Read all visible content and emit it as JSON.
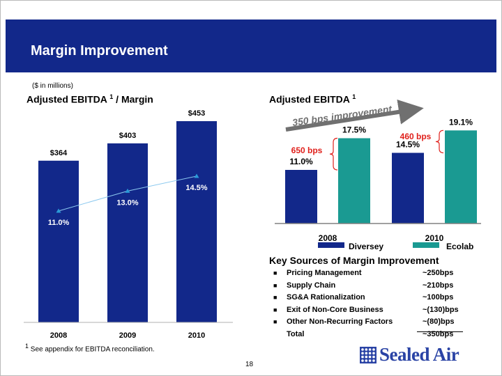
{
  "slide": {
    "title": "Margin Improvement",
    "page_number": "18",
    "footnote": {
      "marker": "1",
      "text": " See appendix for EBITDA reconciliation."
    },
    "logo_text": "Sealed Air"
  },
  "colors": {
    "navy": "#12288a",
    "teal": "#1a9a92",
    "red": "#e0201b",
    "arrow": "#707070",
    "line": "#8cc9ef",
    "marker": "#2a9ad8"
  },
  "chart_data": [
    {
      "type": "bar",
      "title": "Adjusted EBITDA",
      "title_superscript": "1",
      "title_suffix": " / Margin",
      "subtitle": "($ in millions)",
      "categories": [
        "2008",
        "2009",
        "2010"
      ],
      "series": [
        {
          "values": [
            364,
            403,
            453
          ],
          "labels": [
            "$364",
            "$403",
            "$453"
          ]
        },
        {
          "type": "line",
          "values": [
            11.0,
            13.0,
            14.5
          ],
          "labels": [
            "11.0%",
            "13.0%",
            "14.5%"
          ]
        }
      ],
      "ylim": [
        0,
        500
      ],
      "grid": false
    },
    {
      "type": "bar",
      "title": "Adjusted EBITDA",
      "title_superscript": "1",
      "categories": [
        "2008",
        "2010"
      ],
      "series": [
        {
          "name": "Diversey",
          "values": [
            11.0,
            14.5
          ],
          "labels": [
            "11.0%",
            "14.5%"
          ]
        },
        {
          "name": "Ecolab",
          "values": [
            17.5,
            19.1
          ],
          "labels": [
            "17.5%",
            "19.1%"
          ]
        }
      ],
      "annotations": [
        "350 bps improvement",
        "650 bps",
        "460 bps"
      ],
      "ylim": [
        0,
        22
      ],
      "legend": "bottom",
      "grid": false
    }
  ],
  "sources": {
    "title": "Key Sources of Margin Improvement",
    "items": [
      {
        "label": "Pricing Management",
        "value": "~250bps"
      },
      {
        "label": "Supply Chain",
        "value": "~210bps"
      },
      {
        "label": "SG&A Rationalization",
        "value": "~100bps"
      },
      {
        "label": "Exit of Non-Core Business",
        "value": "~(130)bps"
      },
      {
        "label": "Other Non-Recurring Factors",
        "value": "~(80)bps"
      }
    ],
    "total": {
      "label": "Total",
      "value": "~350bps"
    }
  }
}
